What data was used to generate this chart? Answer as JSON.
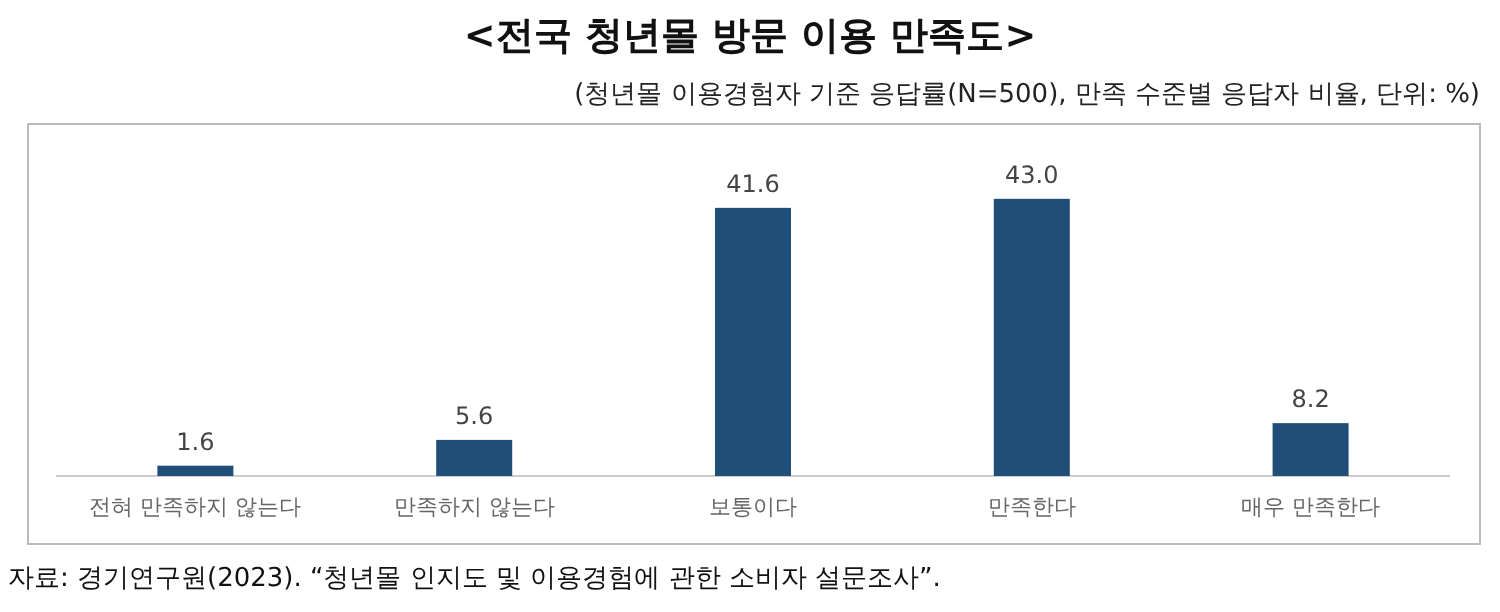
{
  "chart_data": {
    "type": "bar",
    "title": "<전국 청년몰 방문 이용 만족도>",
    "subtitle": "(청년몰 이용경험자 기준 응답률(N=500), 만족 수준별 응답자 비율, 단위: %)",
    "categories": [
      "전혀 만족하지 않는다",
      "만족하지 않는다",
      "보통이다",
      "만족한다",
      "매우 만족한다"
    ],
    "values": [
      1.6,
      5.6,
      41.6,
      43.0,
      8.2
    ],
    "value_labels": [
      "1.6",
      "5.6",
      "41.6",
      "43.0",
      "8.2"
    ],
    "color": "#1f4e79",
    "annotations": [
      "자료: 경기연구원(2023). “청년몰 인지도 및 이용경험에 관한 소비자 설문조사”."
    ]
  }
}
